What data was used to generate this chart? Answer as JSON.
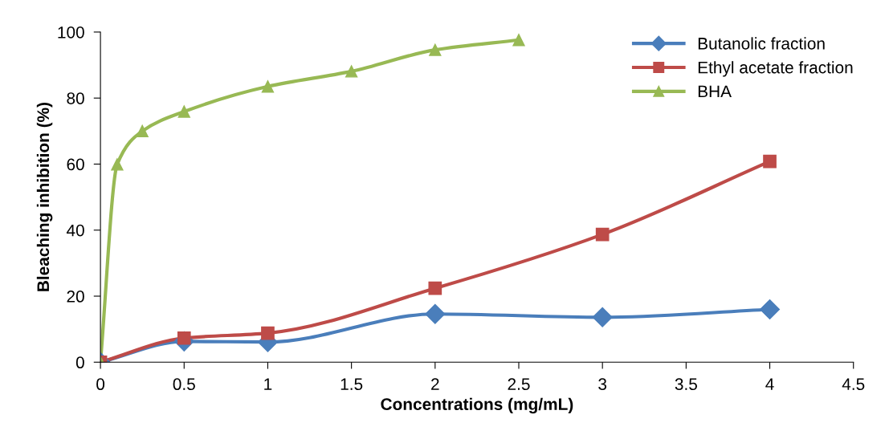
{
  "chart_data": {
    "type": "line",
    "xlabel": "Concentrations (mg/mL)",
    "ylabel": "Bleaching inhibition (%)",
    "xlim": [
      0,
      4.5
    ],
    "xticks": [
      0,
      0.5,
      1,
      1.5,
      2,
      2.5,
      3,
      3.5,
      4,
      4.5
    ],
    "ylim": [
      0,
      100
    ],
    "yticks": [
      0,
      20,
      40,
      60,
      80,
      100
    ],
    "grid": false,
    "legend": "top right",
    "line_style": "solid",
    "series": [
      {
        "name": "Butanolic fraction",
        "color": "#4a7ebb",
        "marker": "diamond",
        "x": [
          0,
          0.5,
          1,
          2,
          3,
          4
        ],
        "values": [
          0,
          6.3,
          6.1,
          14.6,
          13.6,
          16
        ]
      },
      {
        "name": "Ethyl acetate fraction",
        "color": "#be4b48",
        "marker": "square",
        "x": [
          0,
          0.5,
          1,
          2,
          3,
          4
        ],
        "values": [
          0,
          7.3,
          8.8,
          22.4,
          38.7,
          60.8
        ]
      },
      {
        "name": "BHA",
        "color": "#98b954",
        "marker": "triangle",
        "x": [
          0,
          0.1,
          0.25,
          0.5,
          1,
          1.5,
          2,
          2.5
        ],
        "values": [
          0,
          59.9,
          70,
          75.9,
          83.5,
          88.1,
          94.6,
          97.6
        ]
      }
    ]
  }
}
